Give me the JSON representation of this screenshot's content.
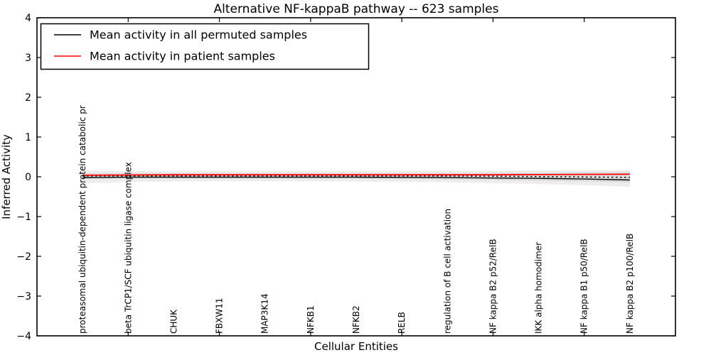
{
  "chart_data": {
    "type": "line",
    "title": "Alternative NF-kappaB pathway -- 623 samples",
    "xlabel": "Cellular Entities",
    "ylabel": "Inferred Activity",
    "ylim": [
      -4,
      4
    ],
    "ytick_labels": [
      "4",
      "3",
      "2",
      "1",
      "0",
      "−1",
      "−2",
      "−3",
      "−4"
    ],
    "grid": false,
    "legend_position": "upper left",
    "categories": [
      "proteasomal ubiquitin-dependent protein catabolic pr",
      "beta TrCP1/SCF ubiquitin ligase complex",
      "CHUK",
      "FBXW11",
      "MAP3K14",
      "NFKB1",
      "NFKB2",
      "RELB",
      "regulation of B cell activation",
      "NF kappa B2 p52/RelB",
      "IKK alpha homodimer",
      "NF kappa B1 p50/RelB",
      "NF kappa B2 p100/RelB"
    ],
    "series": [
      {
        "name": "Mean activity in all permuted samples",
        "color": "#000000",
        "style": "solid",
        "values": [
          -0.02,
          -0.01,
          -0.01,
          -0.01,
          -0.01,
          -0.01,
          -0.01,
          -0.015,
          -0.02,
          -0.03,
          -0.04,
          -0.055,
          -0.08
        ]
      },
      {
        "name": "Mean activity in patient samples",
        "color": "#ff0000",
        "style": "solid",
        "values": [
          0.04,
          0.045,
          0.05,
          0.05,
          0.05,
          0.05,
          0.05,
          0.05,
          0.05,
          0.05,
          0.055,
          0.06,
          0.065
        ]
      },
      {
        "name": "permuted-reference-dotted",
        "color": "#000000",
        "style": "dotted",
        "values": [
          0.02,
          0.02,
          0.02,
          0.02,
          0.02,
          0.02,
          0.02,
          0.02,
          0.02,
          0.015,
          0.005,
          -0.005,
          -0.015
        ]
      }
    ],
    "bands": [
      {
        "name": "permuted-std-band",
        "fill_opacity": 0.07,
        "top": [
          0.16,
          0.15,
          0.14,
          0.14,
          0.14,
          0.14,
          0.14,
          0.14,
          0.15,
          0.15,
          0.16,
          0.16,
          0.17
        ],
        "bottom": [
          -0.16,
          -0.13,
          -0.12,
          -0.11,
          -0.11,
          -0.11,
          -0.12,
          -0.13,
          -0.14,
          -0.16,
          -0.18,
          -0.21,
          -0.25
        ]
      },
      {
        "name": "patient-std-band",
        "fill_opacity": 0.07,
        "top": [
          0.09,
          0.09,
          0.09,
          0.09,
          0.09,
          0.09,
          0.09,
          0.09,
          0.09,
          0.1,
          0.1,
          0.11,
          0.12
        ],
        "bottom": [
          -0.06,
          -0.05,
          -0.05,
          -0.05,
          -0.05,
          -0.05,
          -0.05,
          -0.06,
          -0.07,
          -0.08,
          -0.1,
          -0.12,
          -0.15
        ]
      }
    ]
  },
  "colors": {
    "frame": "#000000",
    "permuted_line": "#000000",
    "patient_line": "#ff0000",
    "band_gray": "#000000",
    "background": "#ffffff"
  }
}
